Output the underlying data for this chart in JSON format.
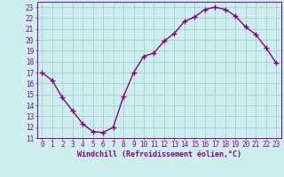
{
  "x": [
    0,
    1,
    2,
    3,
    4,
    5,
    6,
    7,
    8,
    9,
    10,
    11,
    12,
    13,
    14,
    15,
    16,
    17,
    18,
    19,
    20,
    21,
    22,
    23
  ],
  "y": [
    17.0,
    16.3,
    14.7,
    13.5,
    12.3,
    11.6,
    11.5,
    12.0,
    14.8,
    17.0,
    18.5,
    18.8,
    19.9,
    20.6,
    21.7,
    22.1,
    22.8,
    23.0,
    22.8,
    22.2,
    21.2,
    20.5,
    19.3,
    17.9
  ],
  "line_color": "#880088",
  "marker": "+",
  "marker_size": 4,
  "bg_color": "#cceeee",
  "grid_color": "#aacccc",
  "ylabel_values": [
    11,
    12,
    13,
    14,
    15,
    16,
    17,
    18,
    19,
    20,
    21,
    22,
    23
  ],
  "xlim": [
    -0.5,
    23.5
  ],
  "ylim": [
    11,
    23.5
  ],
  "xlabel": "Windchill (Refroidissement éolien,°C)",
  "xlabel_fontsize": 6,
  "tick_fontsize": 5.5,
  "line_width": 1.0
}
